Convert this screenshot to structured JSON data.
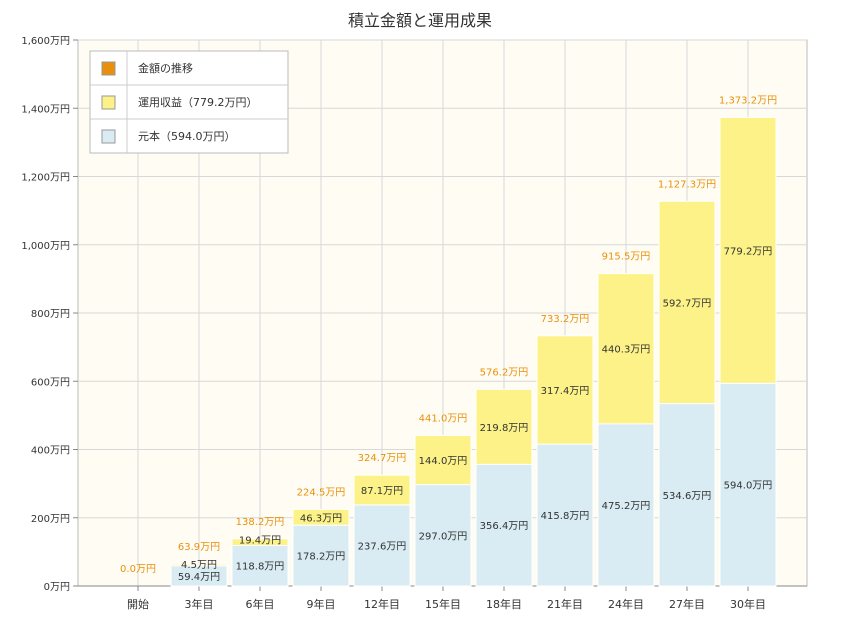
{
  "chart_data": {
    "type": "bar",
    "stacked": true,
    "title": "積立金額と運用成果",
    "categories": [
      "開始",
      "3年目",
      "6年目",
      "9年目",
      "12年目",
      "15年目",
      "18年目",
      "21年目",
      "24年目",
      "27年目",
      "30年目"
    ],
    "y_ticks": [
      "0万円",
      "200万円",
      "400万円",
      "600万円",
      "800万円",
      "1,000万円",
      "1,200万円",
      "1,400万円",
      "1,600万円"
    ],
    "ylim": [
      0,
      1600
    ],
    "grid": true,
    "legend_position": "top-left",
    "series": [
      {
        "name": "元本（594.0万円）",
        "color": "#d9ecf3",
        "values": [
          0,
          59.4,
          118.8,
          178.2,
          237.6,
          297.0,
          356.4,
          415.8,
          475.2,
          534.6,
          594.0
        ],
        "labels": [
          "",
          "59.4万円",
          "118.8万円",
          "178.2万円",
          "237.6万円",
          "297.0万円",
          "356.4万円",
          "415.8万円",
          "475.2万円",
          "534.6万円",
          "594.0万円"
        ]
      },
      {
        "name": "運用収益（779.2万円）",
        "color": "#fcf287",
        "values": [
          0,
          4.5,
          19.4,
          46.3,
          87.1,
          144.0,
          219.8,
          317.4,
          440.3,
          592.7,
          779.2
        ],
        "labels": [
          "",
          "4.5万円",
          "19.4万円",
          "46.3万円",
          "87.1万円",
          "144.0万円",
          "219.8万円",
          "317.4万円",
          "440.3万円",
          "592.7万円",
          "779.2万円"
        ]
      }
    ],
    "line_series": {
      "name": "金額の推移",
      "color": "#e8900c",
      "values": [
        0.0,
        63.9,
        138.2,
        224.5,
        324.7,
        441.0,
        576.2,
        733.2,
        915.5,
        1127.3,
        1373.2
      ],
      "labels": [
        "0.0万円",
        "63.9万円",
        "138.2万円",
        "224.5万円",
        "324.7万円",
        "441.0万円",
        "576.2万円",
        "733.2万円",
        "915.5万円",
        "1,127.3万円",
        "1,373.2万円"
      ]
    }
  }
}
